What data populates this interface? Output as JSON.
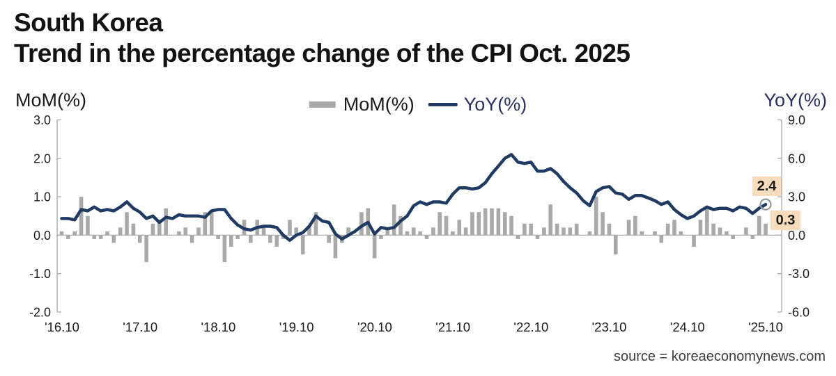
{
  "title": {
    "line1": "South Korea",
    "line2": "Trend in the percentage change of the CPI Oct. 2025"
  },
  "axes": {
    "left_title": "MoM(%)",
    "right_title": "YoY(%)",
    "left_ticks": [
      "3.0",
      "2.0",
      "1.0",
      "0.0",
      "-1.0",
      "-2.0"
    ],
    "right_ticks": [
      "9.0",
      "6.0",
      "3.0",
      "0.0",
      "-3.0",
      "-6.0"
    ],
    "x_ticks": [
      "'16.10",
      "'17.10",
      "'18.10",
      "'19.10",
      "'20.10",
      "'21.10",
      "'22.10",
      "'23.10",
      "'24.10",
      "'25.10"
    ]
  },
  "legend": [
    {
      "label": "MoM(%)",
      "swatch": "bar",
      "color": "#a9a9a9"
    },
    {
      "label": "YoY(%)",
      "swatch": "line",
      "color": "#1f3b63"
    }
  ],
  "annotations": {
    "yoy_latest": "2.4",
    "mom_latest": "0.3",
    "highlight_bg": "#f9dcbb"
  },
  "source": "source = koreaeconomynews.com",
  "chart_data": {
    "type": "combo",
    "x_frequency": "monthly",
    "x_start": "2016.10",
    "x_end": "2025.10",
    "points": 109,
    "x_tick_labels": [
      "'16.10",
      "'17.10",
      "'18.10",
      "'19.10",
      "'20.10",
      "'21.10",
      "'22.10",
      "'23.10",
      "'24.10",
      "'25.10"
    ],
    "left_axis": {
      "label": "MoM(%)",
      "range": [
        -2.0,
        3.0
      ],
      "tick_step": 1.0
    },
    "right_axis": {
      "label": "YoY(%)",
      "range": [
        -6.0,
        9.0
      ],
      "tick_step": 3.0
    },
    "grid": "off",
    "legend_position": "top-center",
    "series": [
      {
        "name": "MoM(%)",
        "type": "bar",
        "axis": "left",
        "color": "#a9a9a9",
        "values": [
          0.1,
          -0.1,
          0.1,
          1.0,
          0.5,
          -0.1,
          -0.1,
          0.1,
          -0.2,
          0.2,
          0.6,
          0.3,
          -0.2,
          -0.7,
          0.3,
          0.4,
          0.7,
          0.0,
          0.1,
          0.2,
          -0.2,
          0.2,
          0.6,
          0.6,
          -0.1,
          -0.7,
          -0.3,
          -0.1,
          0.4,
          -0.2,
          0.4,
          0.2,
          -0.2,
          -0.3,
          -0.1,
          0.4,
          0.2,
          -0.5,
          0.2,
          0.6,
          0.0,
          -0.2,
          -0.6,
          -0.2,
          0.2,
          0.0,
          0.6,
          0.7,
          -0.6,
          -0.1,
          0.2,
          0.8,
          0.5,
          0.1,
          0.2,
          0.1,
          -0.1,
          0.2,
          0.6,
          0.5,
          0.1,
          0.4,
          0.2,
          0.6,
          0.6,
          0.7,
          0.7,
          0.7,
          0.6,
          0.5,
          -0.1,
          0.3,
          0.3,
          -0.1,
          0.2,
          0.8,
          0.3,
          0.2,
          0.2,
          0.3,
          0.0,
          0.1,
          1.0,
          0.6,
          0.3,
          -0.5,
          0.0,
          0.4,
          0.5,
          0.1,
          0.0,
          0.1,
          -0.2,
          0.3,
          0.4,
          0.1,
          0.0,
          -0.3,
          0.4,
          0.7,
          0.3,
          0.2,
          0.1,
          -0.1,
          0.0,
          0.2,
          -0.1,
          0.5,
          0.3
        ]
      },
      {
        "name": "YoY(%)",
        "type": "line",
        "axis": "right",
        "color": "#1f3b63",
        "values": [
          1.3,
          1.3,
          1.2,
          2.0,
          1.9,
          2.2,
          1.9,
          2.0,
          1.9,
          2.2,
          2.6,
          2.1,
          1.8,
          1.3,
          1.5,
          1.0,
          1.4,
          1.3,
          1.6,
          1.5,
          1.5,
          1.5,
          1.4,
          1.9,
          2.0,
          2.0,
          1.3,
          0.8,
          0.5,
          0.4,
          0.6,
          0.7,
          0.7,
          0.6,
          0.0,
          -0.4,
          0.0,
          0.2,
          0.7,
          1.5,
          1.1,
          1.0,
          0.1,
          -0.3,
          0.0,
          0.3,
          0.7,
          1.0,
          0.1,
          0.6,
          0.5,
          0.6,
          1.1,
          1.5,
          2.3,
          2.6,
          2.4,
          2.6,
          2.6,
          2.5,
          3.2,
          3.7,
          3.7,
          3.6,
          3.7,
          4.1,
          4.8,
          5.4,
          6.0,
          6.3,
          5.7,
          5.6,
          5.7,
          5.0,
          5.0,
          5.2,
          4.8,
          4.2,
          3.7,
          3.3,
          2.7,
          2.3,
          3.4,
          3.7,
          3.8,
          3.3,
          3.2,
          2.8,
          3.1,
          3.1,
          2.9,
          2.7,
          2.4,
          2.6,
          2.0,
          1.6,
          1.3,
          1.5,
          1.9,
          2.2,
          2.0,
          2.1,
          2.1,
          1.9,
          2.2,
          2.1,
          1.7,
          2.1,
          2.4
        ]
      }
    ],
    "end_labels": {
      "yoy": 2.4,
      "mom": 0.3
    }
  }
}
